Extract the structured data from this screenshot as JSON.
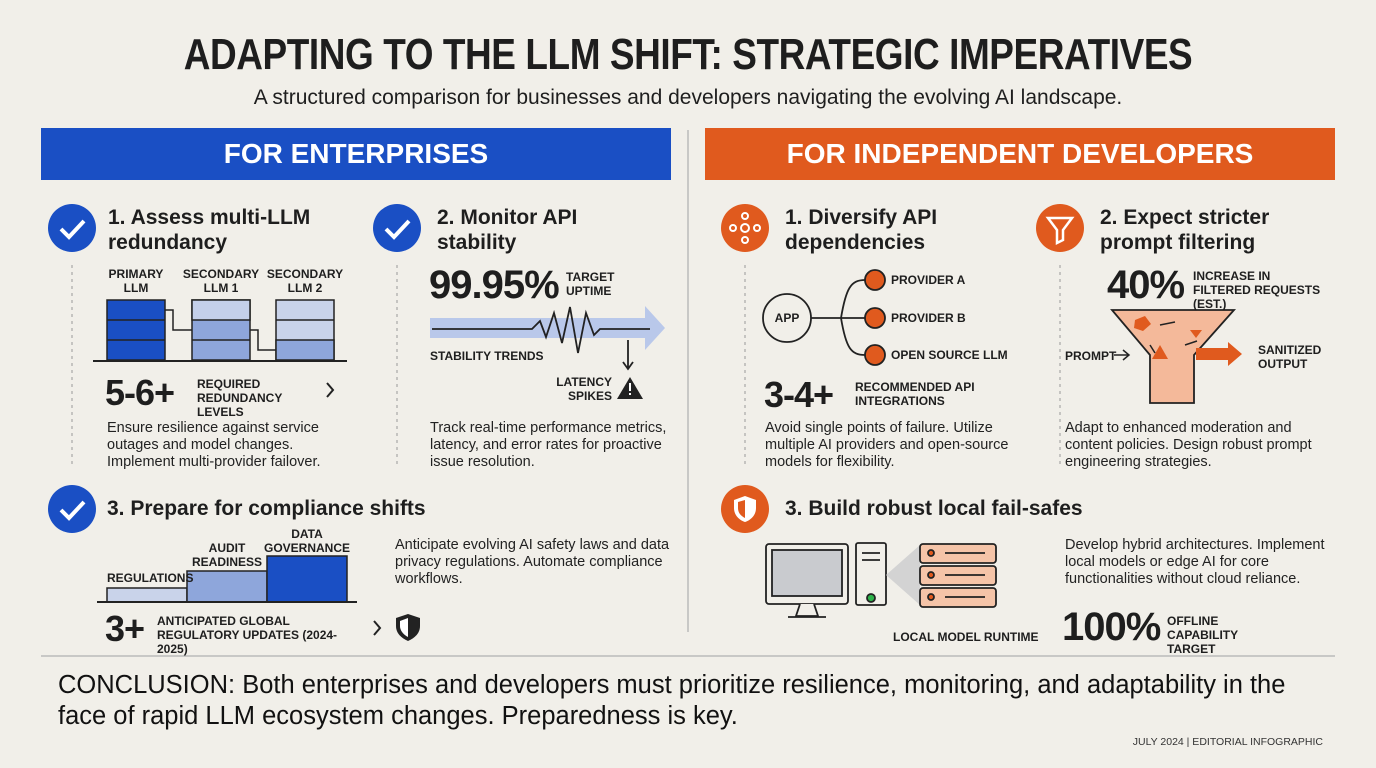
{
  "header": {
    "title": "ADAPTING TO THE LLM SHIFT: STRATEGIC IMPERATIVES",
    "subtitle": "A structured comparison for businesses and developers navigating the evolving AI landscape."
  },
  "enterprises": {
    "heading": "FOR ENTERPRISES",
    "items": [
      {
        "title": "1. Assess multi-LLM redundancy",
        "labels": [
          "PRIMARY LLM",
          "SECONDARY LLM 1",
          "SECONDARY LLM 2"
        ],
        "stat": "5-6+",
        "stat_label": "REQUIRED REDUNDANCY LEVELS",
        "body": "Ensure resilience against service outages and model changes. Implement multi-provider failover."
      },
      {
        "title": "2. Monitor API stability",
        "stat": "99.95%",
        "stat_label": "TARGET UPTIME",
        "labels": [
          "STABILITY TRENDS",
          "LATENCY SPIKES"
        ],
        "body": "Track real-time performance metrics, latency, and error rates for proactive issue resolution."
      },
      {
        "title": "3. Prepare for compliance shifts",
        "labels": [
          "REGULATIONS",
          "AUDIT READINESS",
          "DATA GOVERNANCE"
        ],
        "stat": "3+",
        "stat_label": "ANTICIPATED GLOBAL REGULATORY UPDATES (2024-2025)",
        "body": "Anticipate evolving AI safety laws and data privacy regulations. Automate compliance workflows."
      }
    ]
  },
  "developers": {
    "heading": "FOR INDEPENDENT DEVELOPERS",
    "items": [
      {
        "title": "1. Diversify API dependencies",
        "labels": [
          "APP",
          "PROVIDER A",
          "PROVIDER B",
          "OPEN SOURCE LLM"
        ],
        "stat": "3-4+",
        "stat_label": "RECOMMENDED API INTEGRATIONS",
        "body": "Avoid single points of failure. Utilize multiple AI providers and open-source models for flexibility."
      },
      {
        "title": "2. Expect stricter prompt filtering",
        "stat": "40%",
        "stat_label": "INCREASE IN FILTERED REQUESTS (EST.)",
        "labels": [
          "PROMPT",
          "SANITIZED OUTPUT"
        ],
        "body": "Adapt to enhanced moderation and content policies. Design robust prompt engineering strategies."
      },
      {
        "title": "3. Build robust local fail-safes",
        "labels": [
          "LOCAL MODEL RUNTIME"
        ],
        "body": "Develop hybrid architectures. Implement local models or edge AI for core functionalities without cloud reliance.",
        "stat": "100%",
        "stat_label": "OFFLINE CAPABILITY TARGET"
      }
    ]
  },
  "conclusion": "CONCLUSION: Both enterprises and developers must prioritize resilience, monitoring, and adaptability in the face of rapid LLM ecosystem changes. Preparedness is key.",
  "footer": "JULY 2024 | EDITORIAL INFOGRAPHIC"
}
